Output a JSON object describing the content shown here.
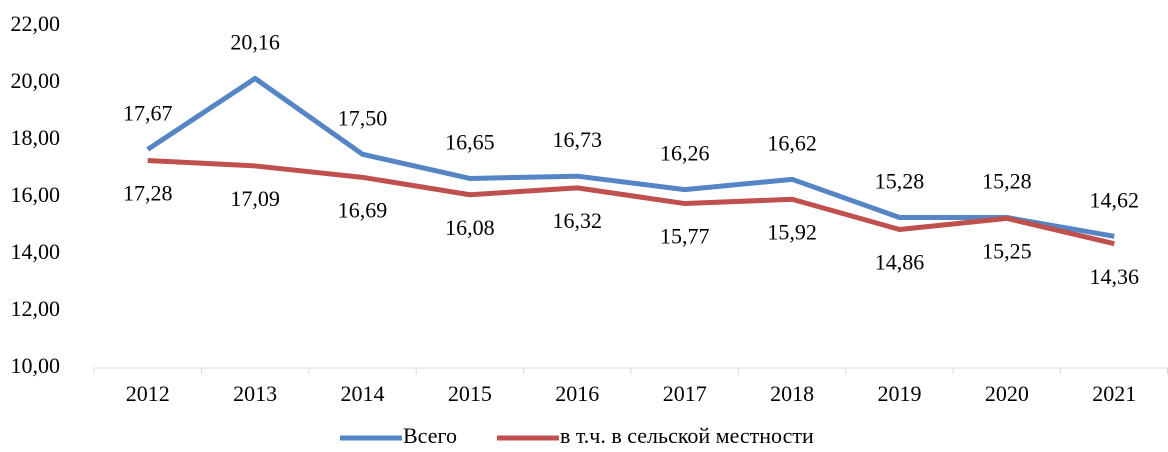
{
  "chart_data": {
    "type": "line",
    "categories": [
      "2012",
      "2013",
      "2014",
      "2015",
      "2016",
      "2017",
      "2018",
      "2019",
      "2020",
      "2021"
    ],
    "series": [
      {
        "name": "Всего",
        "color": "#5585c5",
        "values": [
          17.67,
          20.16,
          17.5,
          16.65,
          16.73,
          16.26,
          16.62,
          15.28,
          15.28,
          14.62
        ],
        "value_labels": [
          "17,67",
          "20,16",
          "17,50",
          "16,65",
          "16,73",
          "16,26",
          "16,62",
          "15,28",
          "15,28",
          "14,62"
        ]
      },
      {
        "name": "в т.ч. в сельской местности",
        "color": "#c0504d",
        "values": [
          17.28,
          17.09,
          16.69,
          16.08,
          16.32,
          15.77,
          15.92,
          14.86,
          15.25,
          14.36
        ],
        "value_labels": [
          "17,28",
          "17,09",
          "16,69",
          "16,08",
          "16,32",
          "15,77",
          "15,92",
          "14,86",
          "15,25",
          "14,36"
        ]
      }
    ],
    "ylim": [
      10,
      22
    ],
    "yticks": [
      {
        "value": 10,
        "label": "10,00"
      },
      {
        "value": 12,
        "label": "12,00"
      },
      {
        "value": 14,
        "label": "14,00"
      },
      {
        "value": 16,
        "label": "16,00"
      },
      {
        "value": 18,
        "label": "18,00"
      },
      {
        "value": 20,
        "label": "20,00"
      },
      {
        "value": 22,
        "label": "22,00"
      }
    ],
    "grid": false,
    "legend": "bottom"
  }
}
